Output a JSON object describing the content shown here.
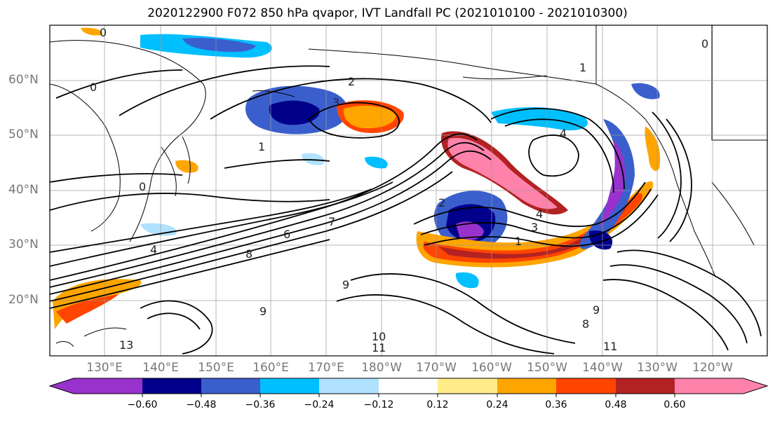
{
  "title": "2020122900 F072 850 hPa qvapor, IVT Landfall PC (2021010100 - 2021010300)",
  "lat_labels": [
    "60°N",
    "50°N",
    "40°N",
    "30°N",
    "20°N"
  ],
  "lon_labels": [
    "130°E",
    "140°E",
    "150°E",
    "160°E",
    "170°E",
    "180°W",
    "170°W",
    "160°W",
    "150°W",
    "140°W",
    "130°W",
    "120°W"
  ],
  "colorbar": {
    "colors": [
      "#9932cc",
      "#00008b",
      "#3a5fcd",
      "#00bfff",
      "#b0e2ff",
      "#ffffff",
      "#ffec8b",
      "#ffa500",
      "#ff4500",
      "#b22222",
      "#ff82ab"
    ],
    "tick_labels": [
      "−0.60",
      "−0.48",
      "−0.36",
      "−0.24",
      "−0.12",
      "0.12",
      "0.24",
      "0.36",
      "0.48",
      "0.60"
    ]
  },
  "contour_labels": [
    "0",
    "0",
    "0",
    "0",
    "1",
    "1",
    "1",
    "2",
    "2",
    "3",
    "3",
    "4",
    "4",
    "4",
    "6",
    "7",
    "8",
    "8",
    "9",
    "9",
    "9",
    "10",
    "11",
    "11",
    "13"
  ]
}
